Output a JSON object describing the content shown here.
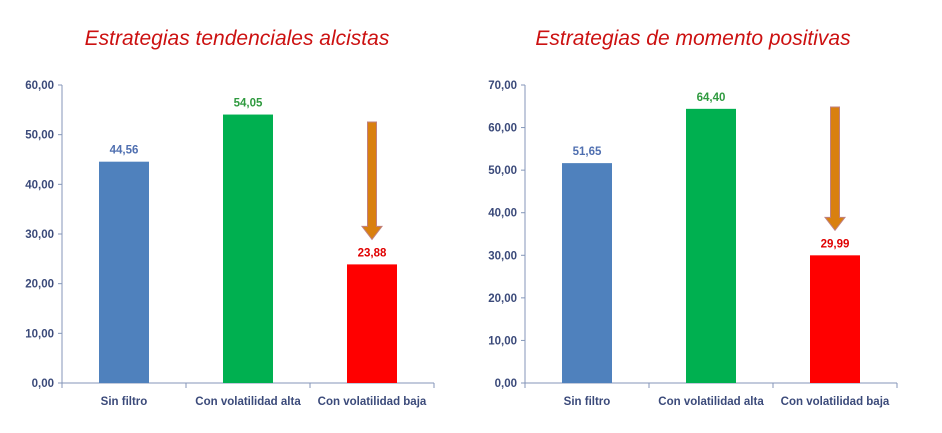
{
  "colors": {
    "title": "#cc1111",
    "axis_text": "#3b4a7a",
    "arrow": "#d9800f",
    "arrow_border": "#c08080"
  },
  "chart_data": [
    {
      "type": "bar",
      "title": "Estrategias tendenciales alcistas",
      "categories": [
        "Sin filtro",
        "Con volatilidad alta",
        "Con volatilidad baja"
      ],
      "values": [
        44.56,
        54.05,
        23.88
      ],
      "value_labels": [
        "44,56",
        "54,05",
        "23,88"
      ],
      "colors": [
        "#4f81bd",
        "#00b050",
        "#ff0000"
      ],
      "label_colors": [
        "#4f6fb0",
        "#2f9a3f",
        "#e00000"
      ],
      "ylim": [
        0,
        60
      ],
      "yticks": [
        "0,00",
        "10,00",
        "20,00",
        "30,00",
        "40,00",
        "50,00",
        "60,00"
      ],
      "xlabel": "",
      "ylabel": "",
      "grid": false,
      "legend": "none",
      "annotation": "down-arrow over Con volatilidad baja"
    },
    {
      "type": "bar",
      "title": "Estrategias de momento positivas",
      "categories": [
        "Sin filtro",
        "Con volatilidad alta",
        "Con volatilidad baja"
      ],
      "values": [
        51.65,
        64.4,
        29.99
      ],
      "value_labels": [
        "51,65",
        "64,40",
        "29,99"
      ],
      "colors": [
        "#4f81bd",
        "#00b050",
        "#ff0000"
      ],
      "label_colors": [
        "#4f6fb0",
        "#2f9a3f",
        "#e00000"
      ],
      "ylim": [
        0,
        70
      ],
      "yticks": [
        "0,00",
        "10,00",
        "20,00",
        "30,00",
        "40,00",
        "50,00",
        "60,00",
        "70,00"
      ],
      "xlabel": "",
      "ylabel": "",
      "grid": false,
      "legend": "none",
      "annotation": "down-arrow over Con volatilidad baja"
    }
  ]
}
